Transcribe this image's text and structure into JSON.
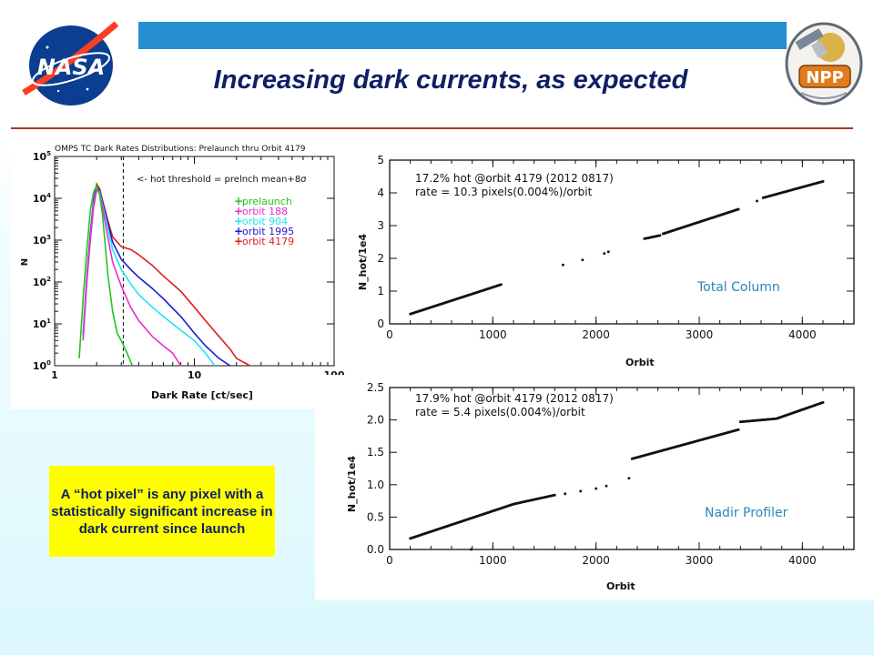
{
  "header": {
    "title": "Increasing dark currents, as expected",
    "left_logo": "NASA",
    "right_logo": "NPP"
  },
  "note": {
    "text": "A “hot pixel” is any pixel with a statistically significant increase in dark current since launch"
  },
  "colors": {
    "banner": "#258fcf",
    "title": "#0f1f66",
    "rule": "#a33a22",
    "note_bg": "#ffff00",
    "label_blue": "#2a88b8"
  },
  "chart_data": [
    {
      "type": "line",
      "title": "OMPS TC Dark Rates Distributions: Prelaunch thru Orbit 4179",
      "xlabel": "Dark Rate [ct/sec]",
      "ylabel": "N",
      "xscale": "log",
      "yscale": "log",
      "xlim": [
        1,
        100
      ],
      "ylim": [
        1,
        100000
      ],
      "x_tick_labels": [
        "1",
        "10",
        "100"
      ],
      "y_tick_labels": [
        "10^0",
        "10^1",
        "10^2",
        "10^3",
        "10^4",
        "10^5"
      ],
      "annotation": "<- hot threshold = prelnch mean+8σ",
      "threshold_x": 3.1,
      "legend_position": "upper-right",
      "series": [
        {
          "name": "prelaunch",
          "color": "#22c322",
          "x": [
            1.5,
            1.6,
            1.7,
            1.8,
            1.9,
            2.0,
            2.1,
            2.2,
            2.3,
            2.4,
            2.6,
            2.8,
            3.0,
            3.3,
            3.6
          ],
          "y": [
            1.5,
            40,
            600,
            5000,
            14000,
            20000,
            12000,
            4000,
            800,
            150,
            20,
            6,
            4,
            2,
            1
          ]
        },
        {
          "name": "orbit 188",
          "color": "#e62dd2",
          "x": [
            1.6,
            1.7,
            1.8,
            1.9,
            2.0,
            2.1,
            2.2,
            2.4,
            2.6,
            3.0,
            3.5,
            4.0,
            5.0,
            6.0,
            7.0,
            8.0
          ],
          "y": [
            4,
            100,
            1000,
            6000,
            16000,
            13000,
            6000,
            1200,
            300,
            80,
            25,
            12,
            5,
            3,
            2,
            1
          ]
        },
        {
          "name": "orbit 904",
          "color": "#1ee6f0",
          "x": [
            1.6,
            1.7,
            1.8,
            1.9,
            2.0,
            2.1,
            2.2,
            2.4,
            2.6,
            3.0,
            3.5,
            4.0,
            5.0,
            6.0,
            8.0,
            10.0,
            12.0,
            14.0
          ],
          "y": [
            5,
            120,
            1100,
            7000,
            17000,
            14000,
            7000,
            2000,
            600,
            200,
            90,
            50,
            25,
            15,
            7,
            4,
            2,
            1
          ]
        },
        {
          "name": "orbit 1995",
          "color": "#1a1ad2",
          "x": [
            1.6,
            1.7,
            1.8,
            1.9,
            2.0,
            2.1,
            2.2,
            2.4,
            2.6,
            3.0,
            3.5,
            4.0,
            5.0,
            6.0,
            8.0,
            10.0,
            12.0,
            15.0,
            18.0
          ],
          "y": [
            5,
            130,
            1300,
            8000,
            19000,
            15000,
            8000,
            2500,
            900,
            350,
            200,
            130,
            70,
            40,
            15,
            6,
            3,
            1.5,
            1
          ]
        },
        {
          "name": "orbit 4179",
          "color": "#dc1e1e",
          "x": [
            1.6,
            1.7,
            1.8,
            1.9,
            2.0,
            2.1,
            2.2,
            2.4,
            2.6,
            3.0,
            3.5,
            4.0,
            5.0,
            6.0,
            8.0,
            10.0,
            12.0,
            15.0,
            18.0,
            20.0,
            25.0
          ],
          "y": [
            6,
            140,
            1500,
            9000,
            22000,
            17000,
            9000,
            3000,
            1200,
            700,
            600,
            450,
            250,
            140,
            60,
            25,
            12,
            5,
            2.5,
            1.5,
            1
          ]
        }
      ]
    },
    {
      "type": "scatter",
      "panel_label": "Total Column",
      "annotation_lines": [
        "17.2% hot @orbit 4179 (2012 0817)",
        "rate = 10.3 pixels(0.004%)/orbit"
      ],
      "xlabel": "Orbit",
      "ylabel": "N_hot/1e4",
      "xlim": [
        0,
        4500
      ],
      "ylim": [
        0,
        5
      ],
      "x_ticks": [
        0,
        1000,
        2000,
        3000,
        4000
      ],
      "y_ticks": [
        0,
        1,
        2,
        3,
        4,
        5
      ],
      "segments": [
        {
          "x_start": 200,
          "x_end": 1080,
          "y_start": 0.3,
          "y_end": 1.2
        },
        {
          "x_start": 2470,
          "x_end": 2620,
          "y_start": 2.6,
          "y_end": 2.7
        },
        {
          "x_start": 2650,
          "x_end": 3380,
          "y_start": 2.75,
          "y_end": 3.5
        },
        {
          "x_start": 3620,
          "x_end": 4200,
          "y_start": 3.85,
          "y_end": 4.35
        }
      ],
      "points": [
        {
          "x": 1680,
          "y": 1.8
        },
        {
          "x": 1870,
          "y": 1.95
        },
        {
          "x": 2080,
          "y": 2.15
        },
        {
          "x": 2120,
          "y": 2.2
        },
        {
          "x": 3560,
          "y": 3.75
        }
      ]
    },
    {
      "type": "scatter",
      "panel_label": "Nadir Profiler",
      "annotation_lines": [
        "17.9% hot @orbit 4179 (2012 0817)",
        "rate = 5.4 pixels(0.004%)/orbit"
      ],
      "xlabel": "Orbit",
      "ylabel": "N_hot/1e4",
      "xlim": [
        0,
        4500
      ],
      "ylim": [
        0,
        2.5
      ],
      "x_ticks": [
        0,
        1000,
        2000,
        3000,
        4000
      ],
      "y_ticks": [
        0.0,
        0.5,
        1.0,
        1.5,
        2.0,
        2.5
      ],
      "segments": [
        {
          "x_start": 200,
          "x_end": 1200,
          "y_start": 0.17,
          "y_end": 0.7
        },
        {
          "x_start": 1200,
          "x_end": 1600,
          "y_start": 0.7,
          "y_end": 0.84
        },
        {
          "x_start": 2350,
          "x_end": 3380,
          "y_start": 1.4,
          "y_end": 1.85
        },
        {
          "x_start": 3400,
          "x_end": 3750,
          "y_start": 1.97,
          "y_end": 2.02
        },
        {
          "x_start": 3750,
          "x_end": 4200,
          "y_start": 2.02,
          "y_end": 2.27
        }
      ],
      "points": [
        {
          "x": 790,
          "y": 0.0
        },
        {
          "x": 1700,
          "y": 0.86
        },
        {
          "x": 1850,
          "y": 0.9
        },
        {
          "x": 2000,
          "y": 0.94
        },
        {
          "x": 2100,
          "y": 0.98
        },
        {
          "x": 2320,
          "y": 1.1
        }
      ]
    }
  ]
}
